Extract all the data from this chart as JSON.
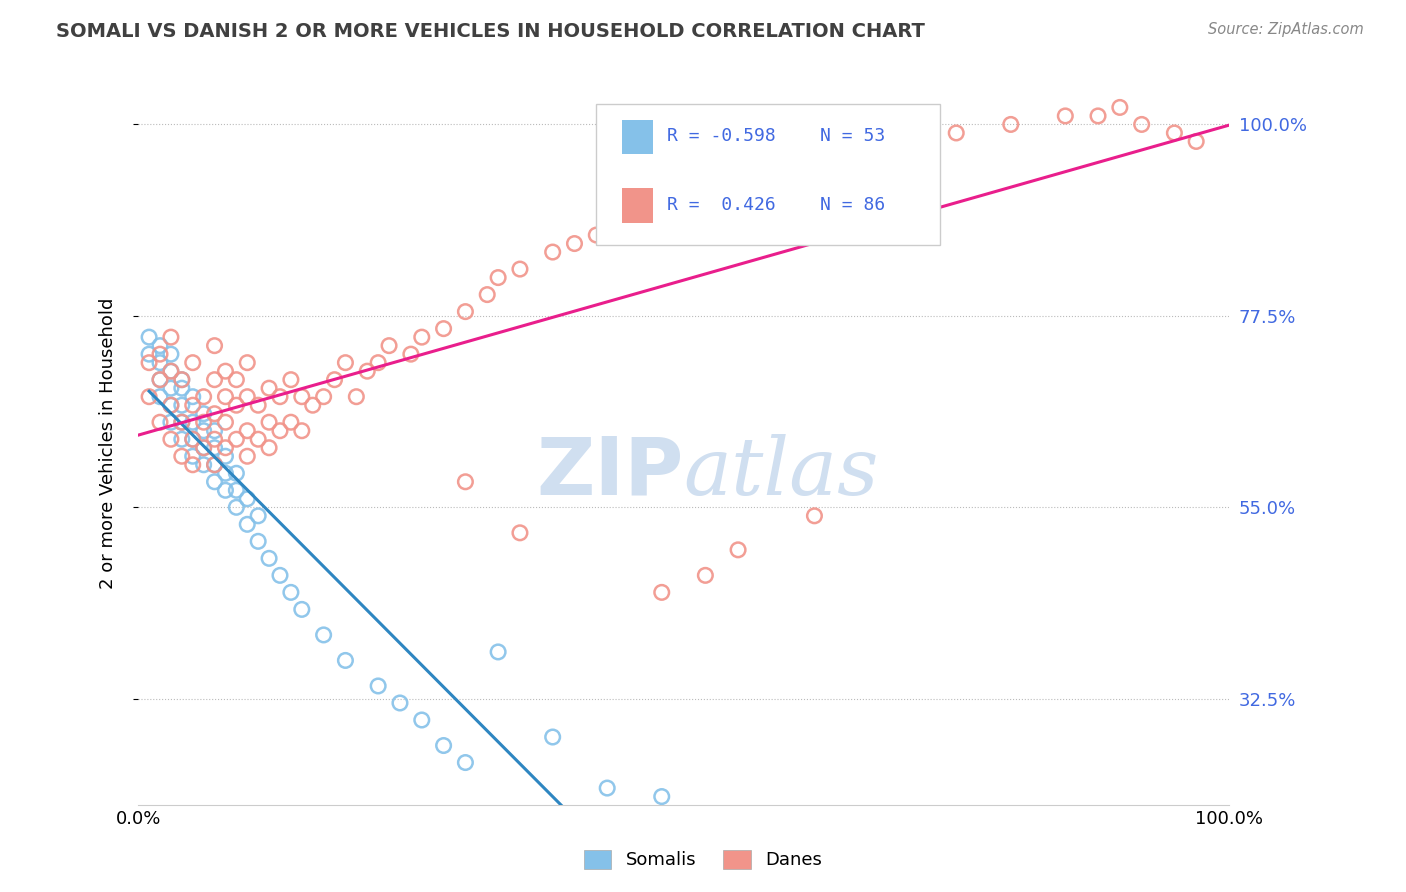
{
  "title": "SOMALI VS DANISH 2 OR MORE VEHICLES IN HOUSEHOLD CORRELATION CHART",
  "source_text": "Source: ZipAtlas.com",
  "ylabel": "2 or more Vehicles in Household",
  "legend_label1": "Somalis",
  "legend_label2": "Danes",
  "r1": -0.598,
  "n1": 53,
  "r2": 0.426,
  "n2": 86,
  "color_somali": "#85C1E9",
  "color_danish": "#F1948A",
  "color_line1": "#2E86C1",
  "color_line2": "#E91E8C",
  "bg_color": "#FFFFFF",
  "watermark_color": "#D0DFF0",
  "title_color": "#404040",
  "right_tick_color": "#4169E1",
  "xlim": [
    0.0,
    1.0
  ],
  "ylim": [
    0.2,
    1.05
  ],
  "yticks": [
    0.325,
    0.55,
    0.775,
    1.0
  ],
  "ytick_labels": [
    "32.5%",
    "55.0%",
    "77.5%",
    "100.0%"
  ],
  "somali_x": [
    0.01,
    0.01,
    0.02,
    0.02,
    0.02,
    0.02,
    0.03,
    0.03,
    0.03,
    0.03,
    0.03,
    0.04,
    0.04,
    0.04,
    0.04,
    0.04,
    0.05,
    0.05,
    0.05,
    0.05,
    0.06,
    0.06,
    0.06,
    0.06,
    0.07,
    0.07,
    0.07,
    0.07,
    0.08,
    0.08,
    0.08,
    0.09,
    0.09,
    0.09,
    0.1,
    0.1,
    0.11,
    0.11,
    0.12,
    0.13,
    0.14,
    0.15,
    0.17,
    0.19,
    0.22,
    0.24,
    0.26,
    0.28,
    0.3,
    0.33,
    0.38,
    0.43,
    0.48
  ],
  "somali_y": [
    0.73,
    0.75,
    0.68,
    0.7,
    0.72,
    0.74,
    0.65,
    0.67,
    0.69,
    0.71,
    0.73,
    0.63,
    0.65,
    0.67,
    0.69,
    0.7,
    0.61,
    0.63,
    0.65,
    0.68,
    0.6,
    0.62,
    0.64,
    0.66,
    0.58,
    0.6,
    0.62,
    0.64,
    0.57,
    0.59,
    0.61,
    0.55,
    0.57,
    0.59,
    0.53,
    0.56,
    0.51,
    0.54,
    0.49,
    0.47,
    0.45,
    0.43,
    0.4,
    0.37,
    0.34,
    0.32,
    0.3,
    0.27,
    0.25,
    0.38,
    0.28,
    0.22,
    0.21
  ],
  "danish_x": [
    0.01,
    0.01,
    0.02,
    0.02,
    0.02,
    0.03,
    0.03,
    0.03,
    0.03,
    0.04,
    0.04,
    0.04,
    0.05,
    0.05,
    0.05,
    0.05,
    0.06,
    0.06,
    0.06,
    0.07,
    0.07,
    0.07,
    0.07,
    0.07,
    0.08,
    0.08,
    0.08,
    0.08,
    0.09,
    0.09,
    0.09,
    0.1,
    0.1,
    0.1,
    0.1,
    0.11,
    0.11,
    0.12,
    0.12,
    0.12,
    0.13,
    0.13,
    0.14,
    0.14,
    0.15,
    0.15,
    0.16,
    0.17,
    0.18,
    0.19,
    0.2,
    0.21,
    0.22,
    0.23,
    0.25,
    0.26,
    0.28,
    0.3,
    0.32,
    0.33,
    0.35,
    0.38,
    0.4,
    0.42,
    0.45,
    0.48,
    0.5,
    0.55,
    0.58,
    0.6,
    0.65,
    0.7,
    0.75,
    0.8,
    0.85,
    0.88,
    0.9,
    0.92,
    0.95,
    0.97,
    0.3,
    0.35,
    0.48,
    0.52,
    0.55,
    0.62
  ],
  "danish_y": [
    0.68,
    0.72,
    0.65,
    0.7,
    0.73,
    0.63,
    0.67,
    0.71,
    0.75,
    0.61,
    0.65,
    0.7,
    0.6,
    0.63,
    0.67,
    0.72,
    0.62,
    0.65,
    0.68,
    0.6,
    0.63,
    0.66,
    0.7,
    0.74,
    0.62,
    0.65,
    0.68,
    0.71,
    0.63,
    0.67,
    0.7,
    0.61,
    0.64,
    0.68,
    0.72,
    0.63,
    0.67,
    0.62,
    0.65,
    0.69,
    0.64,
    0.68,
    0.65,
    0.7,
    0.64,
    0.68,
    0.67,
    0.68,
    0.7,
    0.72,
    0.68,
    0.71,
    0.72,
    0.74,
    0.73,
    0.75,
    0.76,
    0.78,
    0.8,
    0.82,
    0.83,
    0.85,
    0.86,
    0.87,
    0.88,
    0.9,
    0.91,
    0.93,
    0.94,
    0.95,
    0.97,
    0.98,
    0.99,
    1.0,
    1.01,
    1.01,
    1.02,
    1.0,
    0.99,
    0.98,
    0.58,
    0.52,
    0.45,
    0.47,
    0.5,
    0.54
  ]
}
